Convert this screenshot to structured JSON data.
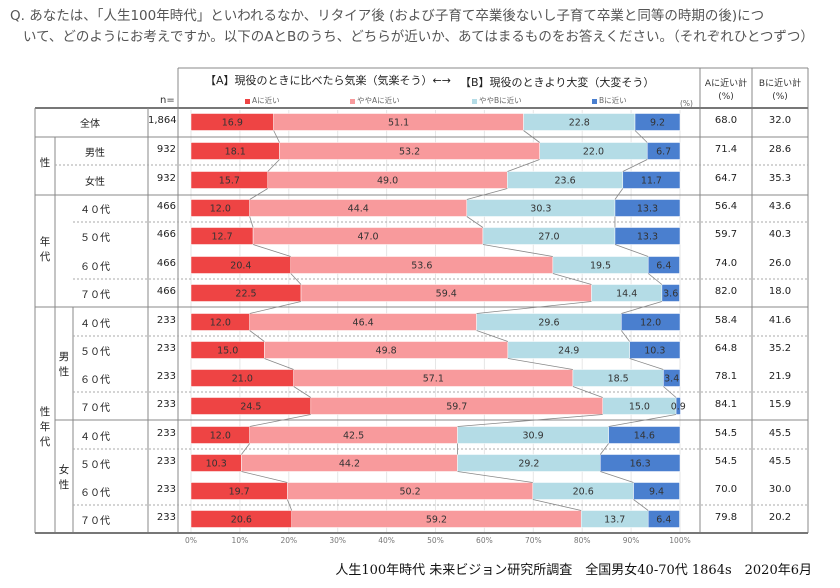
{
  "question": {
    "line1": "Q. あなたは、「人生100年時代」といわれるなか、リタイア後 (および子育て卒業後ないし子育て卒業と同等の時期の後)につ",
    "line2": "いて、どのようにお考えですか。以下のAとBのうち、どちらが近いか、あてはまるものをお答えください。（それぞれひとつずつ）"
  },
  "header": {
    "a_statement": "【A】現役のときに比べたら気楽（気楽そう）←→",
    "b_statement": "【B】現役のときより大変（大変そう）",
    "n_label": "n=",
    "pct_unit": "(%)",
    "col_a_total": "Aに近い計",
    "col_b_total": "Bに近い計",
    "col_unit": "(%)"
  },
  "groups": {
    "gender": "性",
    "age": "年代",
    "gender_age": "性年代",
    "male": "男性",
    "female": "女性"
  },
  "footer": "人生100年時代 未来ビジョン研究所調査　全国男女40-70代 1864s　2020年6月",
  "chart_data": {
    "type": "bar",
    "stacked": true,
    "orientation": "horizontal",
    "xlim": [
      0,
      100
    ],
    "xlabel": "",
    "ylabel": "",
    "x_ticks": [
      "0%",
      "10%",
      "20%",
      "30%",
      "40%",
      "50%",
      "60%",
      "70%",
      "80%",
      "90%",
      "100%"
    ],
    "legend": [
      "Aに近い",
      "ややAに近い",
      "ややBに近い",
      "Bに近い"
    ],
    "legend_position": "top",
    "colors": [
      "#ee4444",
      "#f89a9c",
      "#b4dce6",
      "#4a7fcf"
    ],
    "rows": [
      {
        "label": "全体",
        "n": "1,864",
        "values": [
          16.9,
          51.1,
          22.8,
          9.2
        ],
        "a_total": "68.0",
        "b_total": "32.0"
      },
      {
        "label": "男性",
        "n": "932",
        "values": [
          18.1,
          53.2,
          22.0,
          6.7
        ],
        "a_total": "71.4",
        "b_total": "28.6"
      },
      {
        "label": "女性",
        "n": "932",
        "values": [
          15.7,
          49.0,
          23.6,
          11.7
        ],
        "a_total": "64.7",
        "b_total": "35.3"
      },
      {
        "label": "４０代",
        "n": "466",
        "values": [
          12.0,
          44.4,
          30.3,
          13.3
        ],
        "a_total": "56.4",
        "b_total": "43.6"
      },
      {
        "label": "５０代",
        "n": "466",
        "values": [
          12.7,
          47.0,
          27.0,
          13.3
        ],
        "a_total": "59.7",
        "b_total": "40.3"
      },
      {
        "label": "６０代",
        "n": "466",
        "values": [
          20.4,
          53.6,
          19.5,
          6.4
        ],
        "a_total": "74.0",
        "b_total": "26.0"
      },
      {
        "label": "７０代",
        "n": "466",
        "values": [
          22.5,
          59.4,
          14.4,
          3.6
        ],
        "a_total": "82.0",
        "b_total": "18.0"
      },
      {
        "label": "４０代",
        "n": "233",
        "values": [
          12.0,
          46.4,
          29.6,
          12.0
        ],
        "a_total": "58.4",
        "b_total": "41.6"
      },
      {
        "label": "５０代",
        "n": "233",
        "values": [
          15.0,
          49.8,
          24.9,
          10.3
        ],
        "a_total": "64.8",
        "b_total": "35.2"
      },
      {
        "label": "６０代",
        "n": "233",
        "values": [
          21.0,
          57.1,
          18.5,
          3.4
        ],
        "a_total": "78.1",
        "b_total": "21.9"
      },
      {
        "label": "７０代",
        "n": "233",
        "values": [
          24.5,
          59.7,
          15.0,
          0.9
        ],
        "a_total": "84.1",
        "b_total": "15.9"
      },
      {
        "label": "４０代",
        "n": "233",
        "values": [
          12.0,
          42.5,
          30.9,
          14.6
        ],
        "a_total": "54.5",
        "b_total": "45.5"
      },
      {
        "label": "５０代",
        "n": "233",
        "values": [
          10.3,
          44.2,
          29.2,
          16.3
        ],
        "a_total": "54.5",
        "b_total": "45.5"
      },
      {
        "label": "６０代",
        "n": "233",
        "values": [
          19.7,
          50.2,
          20.6,
          9.4
        ],
        "a_total": "70.0",
        "b_total": "30.0"
      },
      {
        "label": "７０代",
        "n": "233",
        "values": [
          20.6,
          59.2,
          13.7,
          6.4
        ],
        "a_total": "79.8",
        "b_total": "20.2"
      }
    ]
  }
}
